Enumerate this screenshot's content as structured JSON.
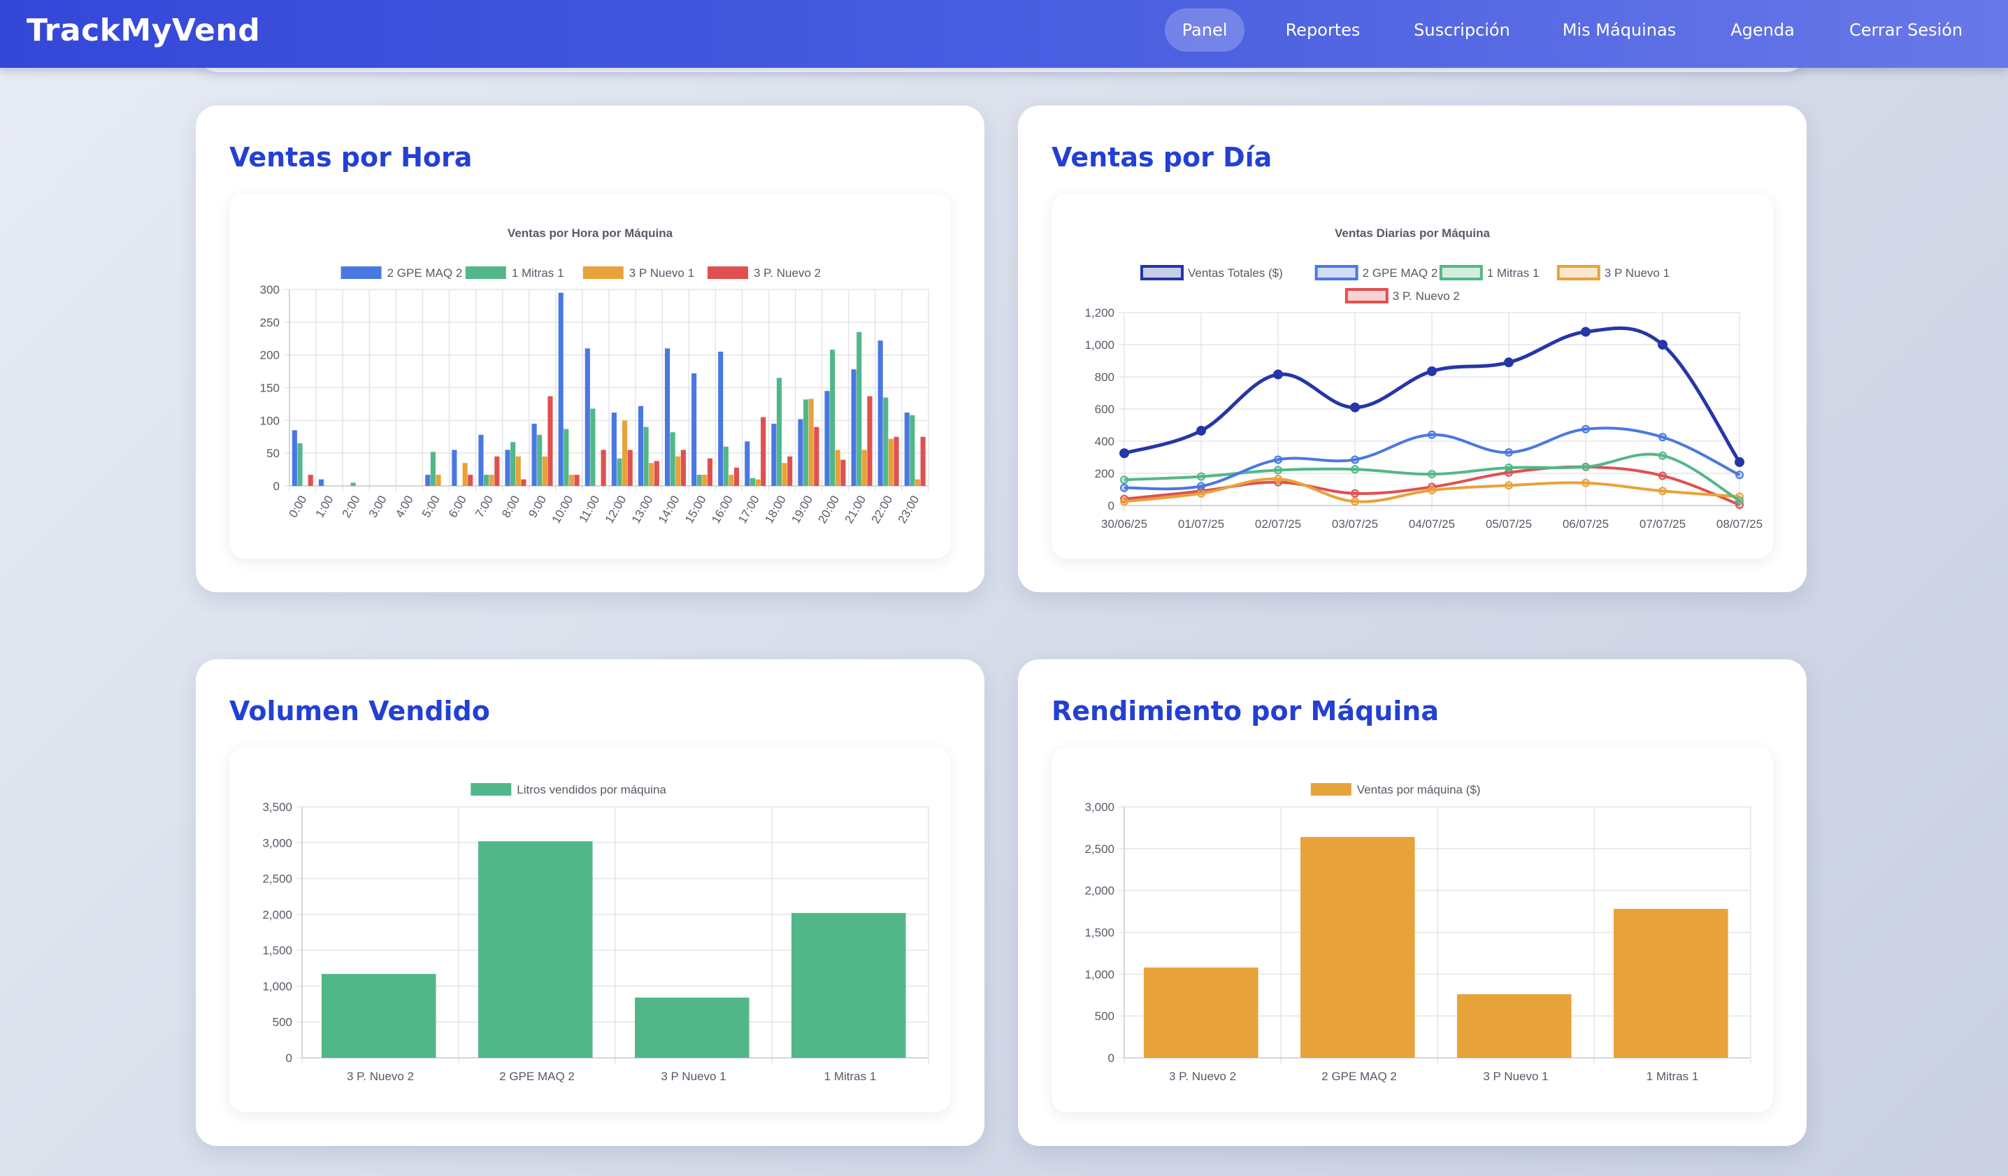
{
  "header": {
    "brand": "TrackMyVend",
    "nav": [
      {
        "label": "Panel",
        "active": true
      },
      {
        "label": "Reportes"
      },
      {
        "label": "Suscripción"
      },
      {
        "label": "Mis Máquinas"
      },
      {
        "label": "Agenda"
      },
      {
        "label": "Cerrar Sesión"
      }
    ]
  },
  "cards": [
    {
      "title": "Ventas por Hora"
    },
    {
      "title": "Ventas por Día"
    },
    {
      "title": "Volumen Vendido"
    },
    {
      "title": "Rendimiento por Máquina"
    }
  ],
  "colors": {
    "blue": "#4a78e2",
    "green": "#52b788",
    "orange": "#e8a23a",
    "red": "#e05050",
    "navy": "#2536a8"
  },
  "chart_data": [
    {
      "type": "bar",
      "title": "Ventas por Hora por Máquina",
      "categories": [
        "0:00",
        "1:00",
        "2:00",
        "3:00",
        "4:00",
        "5:00",
        "6:00",
        "7:00",
        "8:00",
        "9:00",
        "10:00",
        "11:00",
        "12:00",
        "13:00",
        "14:00",
        "15:00",
        "16:00",
        "17:00",
        "18:00",
        "19:00",
        "20:00",
        "21:00",
        "22:00",
        "23:00"
      ],
      "ylim": [
        0,
        300
      ],
      "yticks": [
        0,
        50,
        100,
        150,
        200,
        250,
        300
      ],
      "legend": "top",
      "grid": true,
      "series": [
        {
          "name": "2 GPE MAQ 2",
          "color": "#4a78e2",
          "values": [
            85,
            10,
            0,
            0,
            0,
            17,
            55,
            78,
            55,
            95,
            295,
            210,
            112,
            122,
            210,
            172,
            205,
            68,
            95,
            102,
            145,
            178,
            222,
            112
          ]
        },
        {
          "name": "1 Mitras 1",
          "color": "#52b788",
          "values": [
            65,
            0,
            5,
            0,
            0,
            52,
            0,
            17,
            67,
            78,
            87,
            118,
            42,
            90,
            82,
            17,
            60,
            12,
            165,
            132,
            208,
            235,
            135,
            108
          ]
        },
        {
          "name": "3 P Nuevo 1",
          "color": "#e8a23a",
          "values": [
            0,
            0,
            0,
            0,
            0,
            17,
            35,
            17,
            45,
            45,
            17,
            0,
            100,
            35,
            45,
            17,
            17,
            10,
            35,
            133,
            55,
            55,
            72,
            10
          ]
        },
        {
          "name": "3 P. Nuevo 2",
          "color": "#e05050",
          "values": [
            17,
            0,
            0,
            0,
            0,
            0,
            17,
            45,
            10,
            137,
            17,
            55,
            55,
            38,
            55,
            42,
            28,
            105,
            45,
            90,
            40,
            137,
            75,
            75
          ]
        }
      ]
    },
    {
      "type": "line",
      "title": "Ventas Diarias por Máquina",
      "categories": [
        "30/06/25",
        "01/07/25",
        "02/07/25",
        "03/07/25",
        "04/07/25",
        "05/07/25",
        "06/07/25",
        "07/07/25",
        "08/07/25"
      ],
      "ylim": [
        0,
        1200
      ],
      "yticks": [
        "0",
        "200",
        "400",
        "600",
        "800",
        "1,000",
        "1,200"
      ],
      "legend": "top",
      "grid": true,
      "series": [
        {
          "name": "Ventas Totales ($)",
          "color": "#2536a8",
          "values": [
            325,
            465,
            815,
            610,
            835,
            890,
            1080,
            1000,
            270
          ]
        },
        {
          "name": "2 GPE MAQ 2",
          "color": "#4a78e2",
          "values": [
            110,
            120,
            285,
            285,
            440,
            330,
            475,
            425,
            190
          ]
        },
        {
          "name": "1 Mitras 1",
          "color": "#52b788",
          "values": [
            160,
            180,
            220,
            225,
            195,
            235,
            240,
            310,
            30
          ]
        },
        {
          "name": "3 P Nuevo 1",
          "color": "#e8a23a",
          "values": [
            25,
            75,
            165,
            25,
            95,
            125,
            140,
            90,
            55
          ]
        },
        {
          "name": "3 P. Nuevo 2",
          "color": "#e05050",
          "values": [
            40,
            90,
            145,
            75,
            115,
            205,
            240,
            185,
            5
          ]
        }
      ]
    },
    {
      "type": "bar",
      "categories": [
        "3 P. Nuevo 2",
        "2 GPE MAQ 2",
        "3 P Nuevo 1",
        "1 Mitras 1"
      ],
      "ylim": [
        0,
        3500
      ],
      "yticks": [
        "0",
        "500",
        "1,000",
        "1,500",
        "2,000",
        "2,500",
        "3,000",
        "3,500"
      ],
      "legend": "top",
      "grid": true,
      "series": [
        {
          "name": "Litros vendidos por máquina",
          "color": "#52b788",
          "values": [
            1170,
            3020,
            840,
            2020
          ]
        }
      ]
    },
    {
      "type": "bar",
      "categories": [
        "3 P. Nuevo 2",
        "2 GPE MAQ 2",
        "3 P Nuevo 1",
        "1 Mitras 1"
      ],
      "ylim": [
        0,
        3000
      ],
      "yticks": [
        "0",
        "500",
        "1,000",
        "1,500",
        "2,000",
        "2,500",
        "3,000"
      ],
      "legend": "top",
      "grid": true,
      "series": [
        {
          "name": "Ventas por máquina ($)",
          "color": "#e8a23a",
          "values": [
            1080,
            2640,
            760,
            1780
          ]
        }
      ]
    }
  ]
}
